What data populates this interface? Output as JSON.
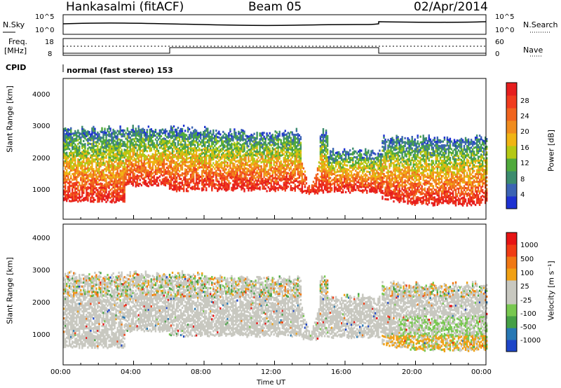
{
  "header": {
    "station": "Hankasalmi (fitACF)",
    "beam": "Beam 05",
    "date": "02/Apr/2014"
  },
  "top_panels": {
    "nsky_label": "N.Sky",
    "nsky_ticks": [
      "10^5",
      "10^0"
    ],
    "nsearch_label": "N.Search",
    "nsearch_ticks": [
      "10^5",
      "10^0"
    ],
    "freq_label": "Freq.",
    "freq_unit": "[MHz]",
    "freq_ticks": [
      "18",
      "8"
    ],
    "nave_label": "Nave",
    "nave_ticks": [
      "60",
      "0"
    ],
    "cpid_label": "CPID",
    "cpid_text": "normal (fast stereo) 153"
  },
  "chart_data": [
    {
      "type": "heatmap",
      "name": "power",
      "ylabel": "Slant Range [km]",
      "yticks": [
        "4000",
        "3000",
        "2000",
        "1000"
      ],
      "ylim": [
        200,
        4600
      ],
      "xlim": [
        0,
        24
      ],
      "colorbar_label": "Power [dB]",
      "colorbar_ticks": [
        "28",
        "24",
        "20",
        "16",
        "12",
        "8",
        "4"
      ],
      "colors": [
        "#1e32d2",
        "#3c64b4",
        "#3c8c6e",
        "#50aa3c",
        "#b4c814",
        "#f0b414",
        "#f08c1e",
        "#f0641e",
        "#f03c1e",
        "#e61e1e"
      ]
    },
    {
      "type": "heatmap",
      "name": "velocity",
      "ylabel": "Slant Range [km]",
      "yticks": [
        "4000",
        "3000",
        "2000",
        "1000"
      ],
      "ylim": [
        200,
        4600
      ],
      "xlim": [
        0,
        24
      ],
      "xticks": [
        "00:00",
        "04:00",
        "08:00",
        "12:00",
        "16:00",
        "20:00",
        "00:00"
      ],
      "xlabel": "Time UT",
      "colorbar_label": "Velocity [m s⁻¹]",
      "colorbar_ticks": [
        "1000",
        "500",
        "100",
        "25",
        "-25",
        "-100",
        "-500",
        "-1000"
      ],
      "colors": [
        "#1e46c8",
        "#2878b4",
        "#46a046",
        "#78c850",
        "#c8c8c0",
        "#c8c8c0",
        "#f0a014",
        "#f07814",
        "#f03c14",
        "#e61414"
      ]
    }
  ]
}
